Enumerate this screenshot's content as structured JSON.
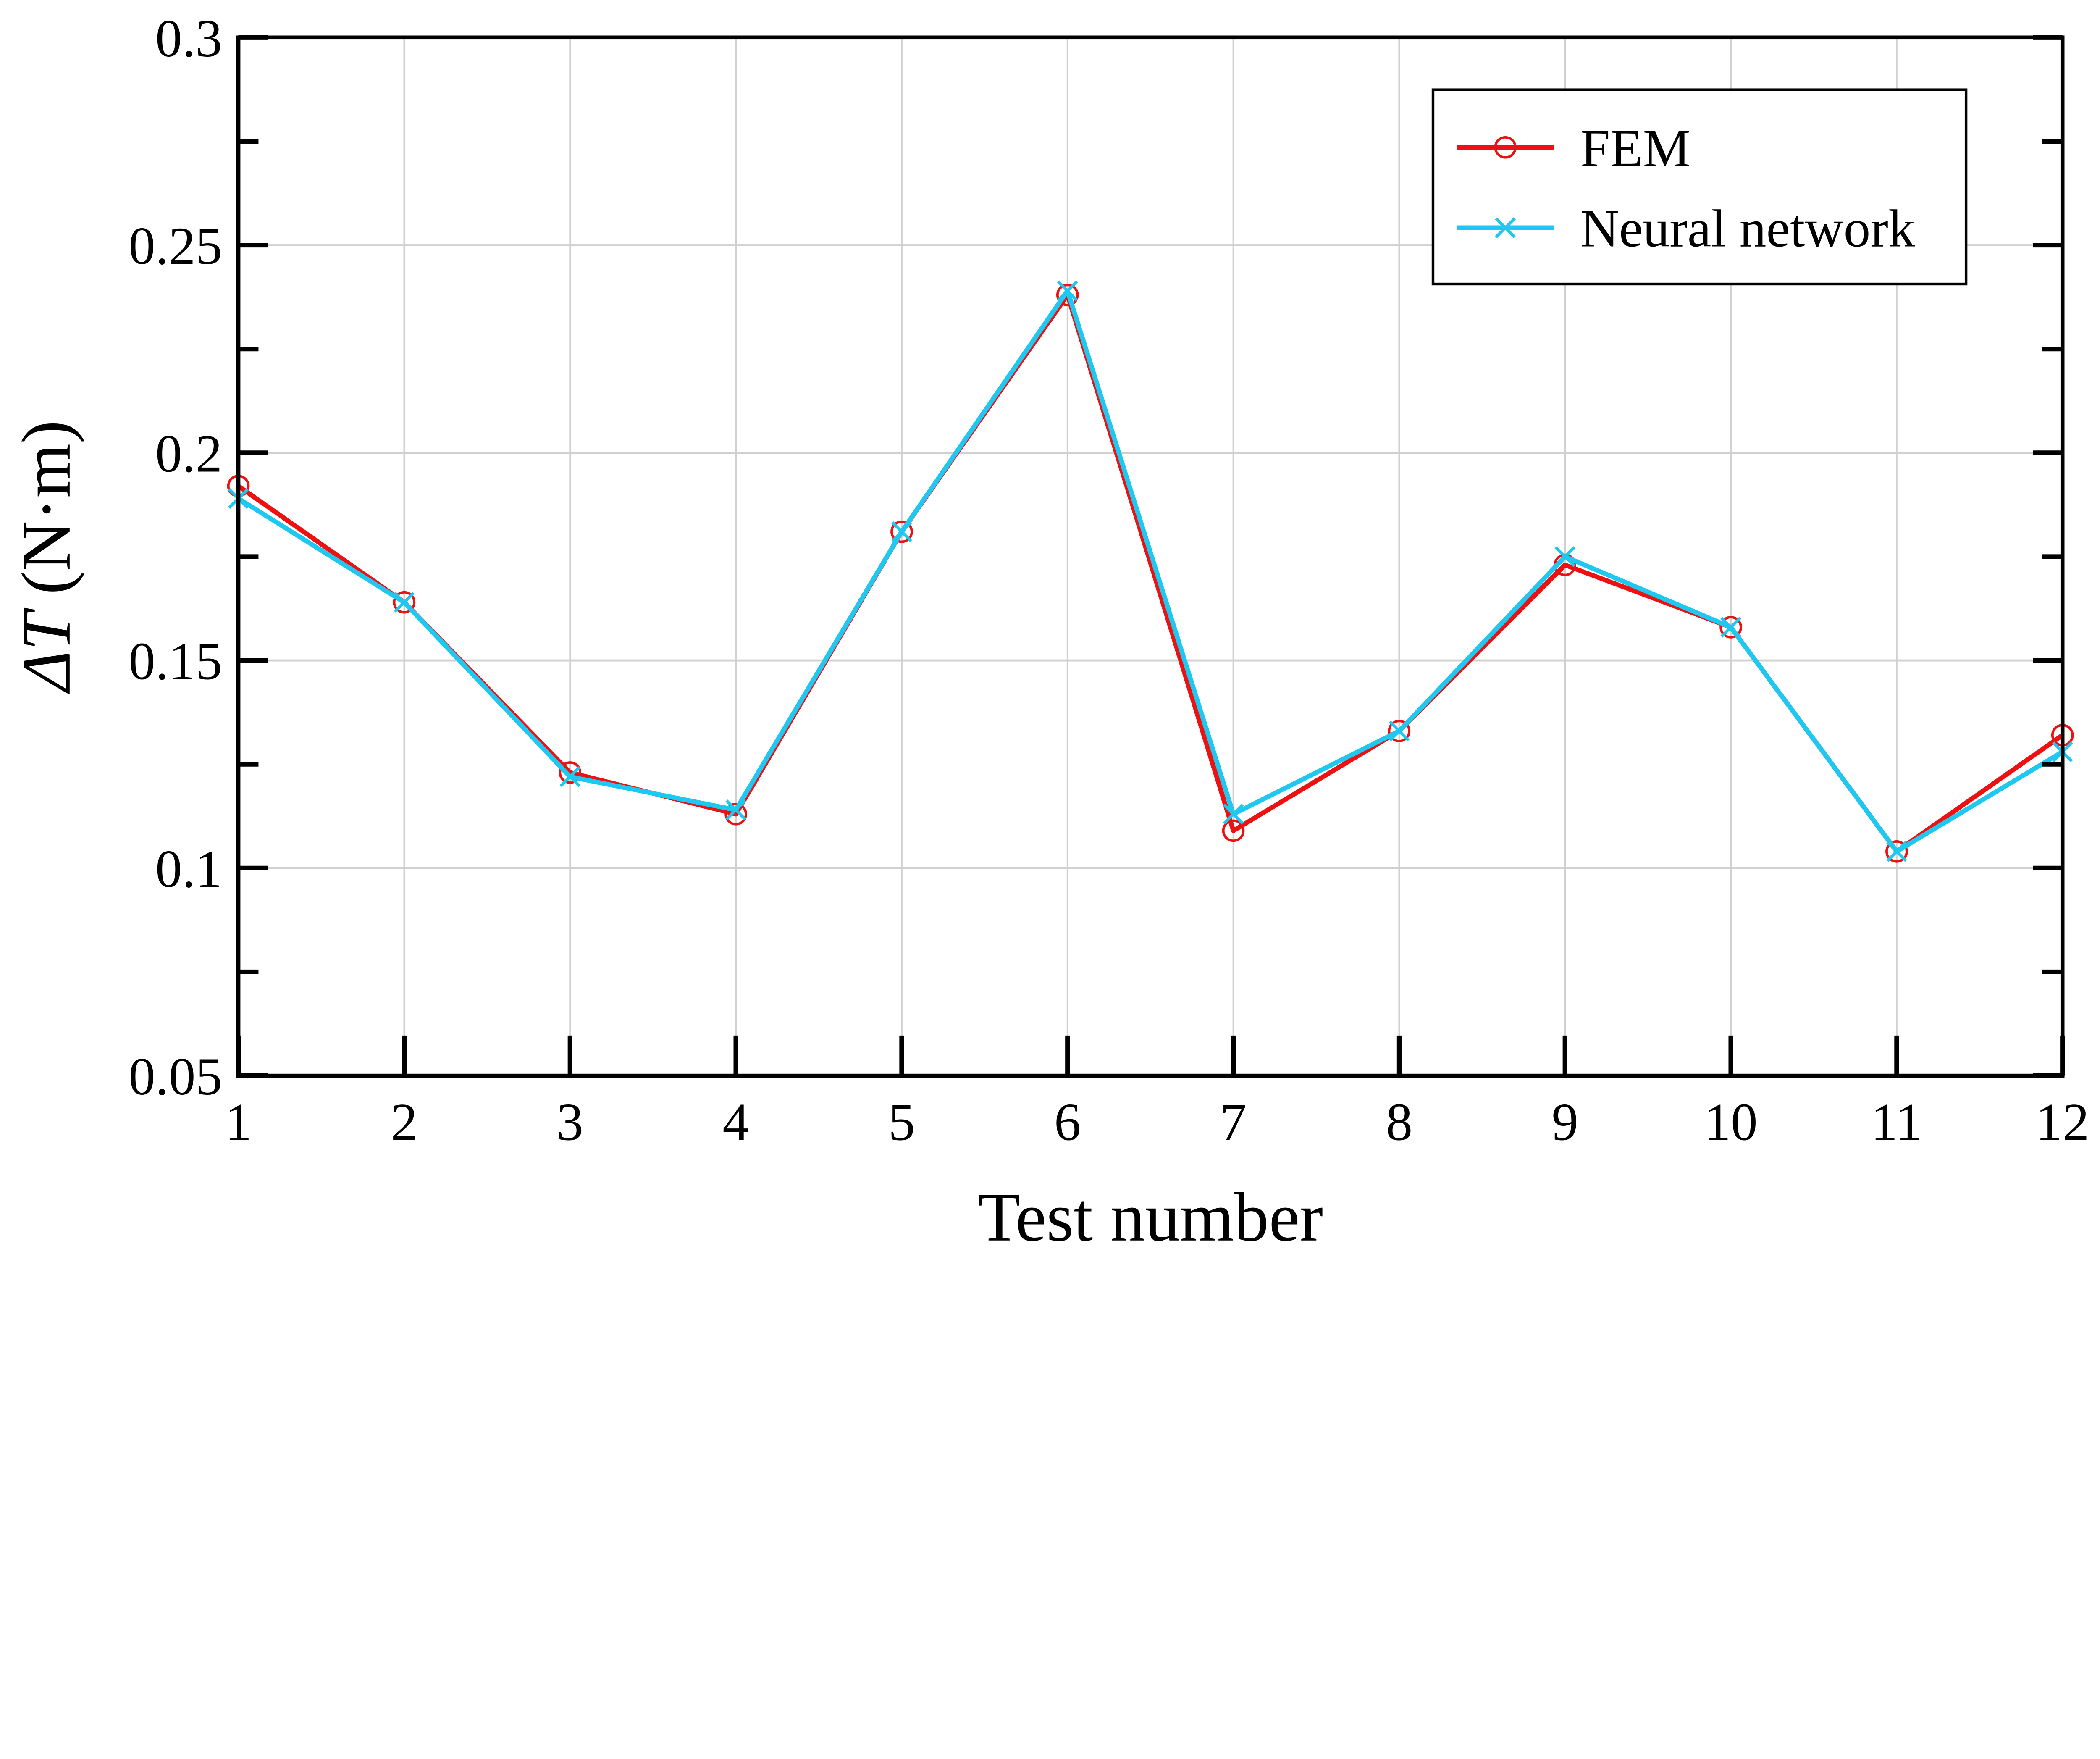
{
  "chart_data": {
    "type": "line",
    "title": "",
    "xlabel": "Test number",
    "ylabel_italic": "ΔT",
    "ylabel_unit": " (N·m)",
    "x": [
      1,
      2,
      3,
      4,
      5,
      6,
      7,
      8,
      9,
      10,
      11,
      12
    ],
    "xlim": [
      1,
      12
    ],
    "ylim": [
      0.05,
      0.3
    ],
    "yticks": [
      0.05,
      0.1,
      0.15,
      0.2,
      0.25,
      0.3
    ],
    "ytick_labels": [
      "0.05",
      "0.1",
      "0.15",
      "0.2",
      "0.25",
      "0.3"
    ],
    "xtick_labels": [
      "1",
      "2",
      "3",
      "4",
      "5",
      "6",
      "7",
      "8",
      "9",
      "10",
      "11",
      "12"
    ],
    "grid": true,
    "legend_position": "top-right",
    "series": [
      {
        "name": "FEM",
        "color": "#ee1111",
        "marker": "circle",
        "values": [
          0.192,
          0.164,
          0.123,
          0.113,
          0.181,
          0.238,
          0.109,
          0.133,
          0.173,
          0.158,
          0.104,
          0.132
        ]
      },
      {
        "name": "Neural network",
        "color": "#1ec8f0",
        "marker": "x",
        "values": [
          0.189,
          0.164,
          0.122,
          0.114,
          0.181,
          0.239,
          0.113,
          0.133,
          0.175,
          0.158,
          0.104,
          0.128
        ]
      }
    ]
  }
}
